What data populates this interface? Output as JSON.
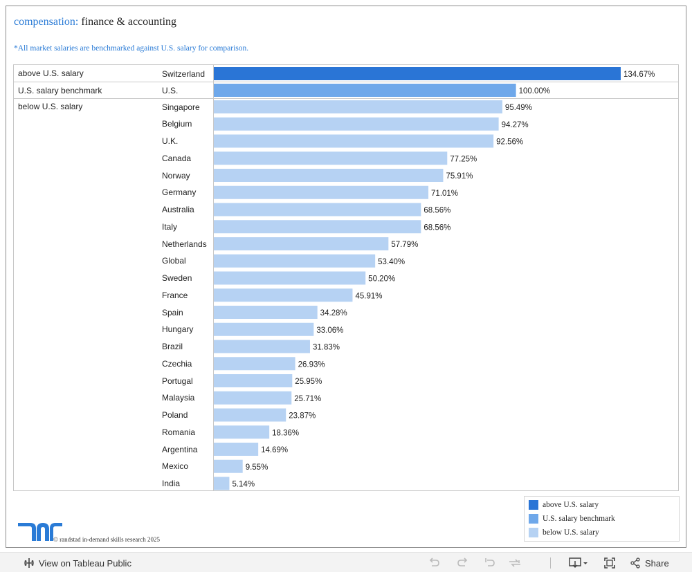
{
  "header": {
    "title_accent": "compensation:",
    "title_rest": "finance & accounting",
    "note": "*All market salaries are benchmarked against U.S. salary for comparison."
  },
  "groups": {
    "above": "above U.S. salary",
    "benchmark": "U.S. salary benchmark",
    "below": "below U.S. salary"
  },
  "colors": {
    "above": "#2a75d6",
    "benchmark": "#6fa8ea",
    "below": "#b6d2f3",
    "accent": "#2a7bd6",
    "logo": "#2a7bd6"
  },
  "chart_data": {
    "type": "bar",
    "orientation": "horizontal",
    "title": "compensation: finance & accounting",
    "value_unit": "% of U.S. salary",
    "xlim": [
      0,
      140
    ],
    "categories": [
      "Switzerland",
      "U.S.",
      "Singapore",
      "Belgium",
      "U.K.",
      "Canada",
      "Norway",
      "Germany",
      "Australia",
      "Italy",
      "Netherlands",
      "Global",
      "Sweden",
      "France",
      "Spain",
      "Hungary",
      "Brazil",
      "Czechia",
      "Portugal",
      "Malaysia",
      "Poland",
      "Romania",
      "Argentina",
      "Mexico",
      "India"
    ],
    "values": [
      134.67,
      100.0,
      95.49,
      94.27,
      92.56,
      77.25,
      75.91,
      71.01,
      68.56,
      68.56,
      57.79,
      53.4,
      50.2,
      45.91,
      34.28,
      33.06,
      31.83,
      26.93,
      25.95,
      25.71,
      23.87,
      18.36,
      14.69,
      9.55,
      5.14
    ],
    "labels": [
      "134.67%",
      "100.00%",
      "95.49%",
      "94.27%",
      "92.56%",
      "77.25%",
      "75.91%",
      "71.01%",
      "68.56%",
      "68.56%",
      "57.79%",
      "53.40%",
      "50.20%",
      "45.91%",
      "34.28%",
      "33.06%",
      "31.83%",
      "26.93%",
      "25.95%",
      "25.71%",
      "23.87%",
      "18.36%",
      "14.69%",
      "9.55%",
      "5.14%"
    ],
    "group": [
      "above",
      "benchmark",
      "below",
      "below",
      "below",
      "below",
      "below",
      "below",
      "below",
      "below",
      "below",
      "below",
      "below",
      "below",
      "below",
      "below",
      "below",
      "below",
      "below",
      "below",
      "below",
      "below",
      "below",
      "below",
      "below"
    ]
  },
  "legend": {
    "items": [
      {
        "label": "above U.S. salary",
        "color": "#2a75d6"
      },
      {
        "label": "U.S. salary benchmark",
        "color": "#6fa8ea"
      },
      {
        "label": "below U.S. salary",
        "color": "#b6d2f3"
      }
    ]
  },
  "footer": {
    "copyright": "© randstad in-demand skills research 2025"
  },
  "toolbar": {
    "view_label": "View on Tableau Public",
    "share_label": "Share"
  }
}
